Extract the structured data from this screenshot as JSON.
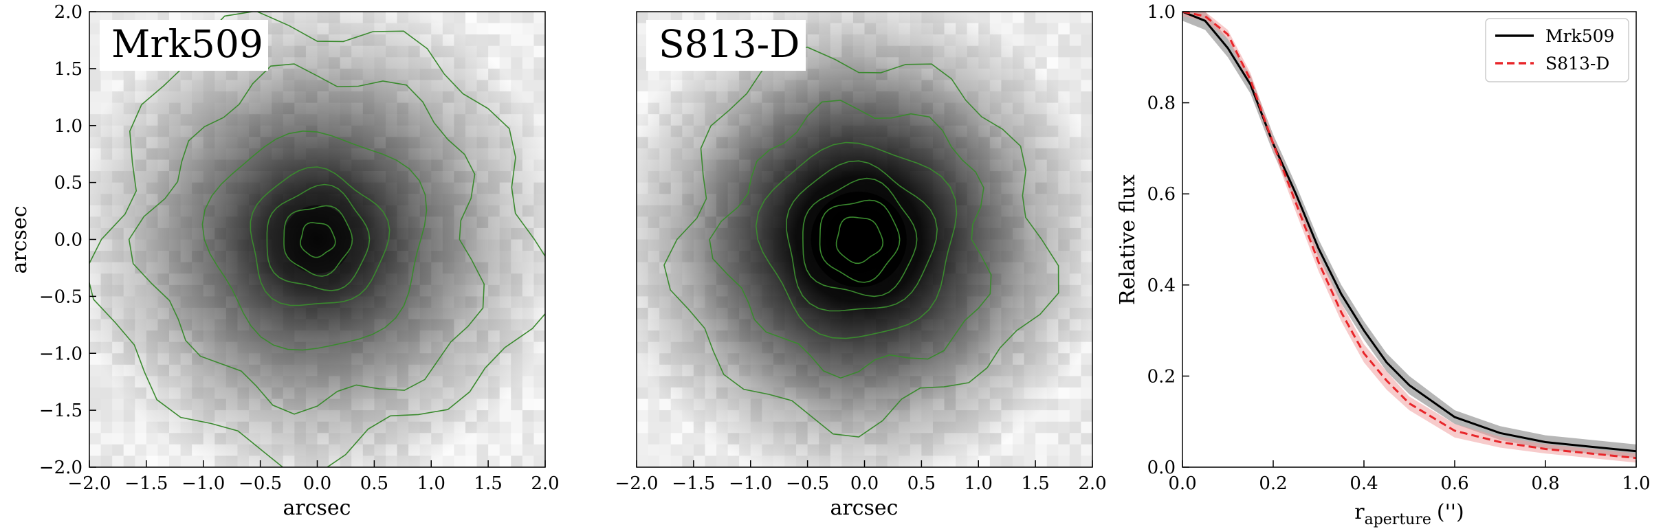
{
  "chart_data": [
    {
      "type": "heatmap",
      "panel_label": "Mrk509",
      "xlabel": "arcsec",
      "ylabel": "arcsec",
      "xlim": [
        -2.0,
        2.0
      ],
      "ylim": [
        -2.0,
        2.0
      ],
      "xticks": [
        "−2.0",
        "−1.5",
        "−1.0",
        "−0.5",
        "0.0",
        "0.5",
        "1.0",
        "1.5",
        "2.0"
      ],
      "yticks": [
        "−2.0",
        "−1.5",
        "−1.0",
        "−0.5",
        "0.0",
        "0.5",
        "1.0",
        "1.5",
        "2.0"
      ],
      "colormap": "gray_r",
      "contour_color": "#3a8a2e",
      "source_center": [
        0.0,
        0.0
      ],
      "contour_radii": [
        0.15,
        0.3,
        0.45,
        0.6,
        0.95,
        1.45,
        1.9
      ]
    },
    {
      "type": "heatmap",
      "panel_label": "S813-D",
      "xlabel": "arcsec",
      "ylabel": "",
      "xlim": [
        -2.0,
        2.0
      ],
      "ylim": [
        -2.0,
        2.0
      ],
      "xticks": [
        "−2.0",
        "−1.5",
        "−1.0",
        "−0.5",
        "0.0",
        "0.5",
        "1.0",
        "1.5",
        "2.0"
      ],
      "yticks": [],
      "colormap": "gray_r",
      "contour_color": "#3a8a2e",
      "source_center": [
        -0.05,
        0.0
      ],
      "contour_radii": [
        0.2,
        0.35,
        0.5,
        0.65,
        0.85,
        1.15,
        1.6
      ]
    },
    {
      "type": "line",
      "xlabel": "r",
      "xlabel_subscript": "aperture",
      "xlabel_unit": "('')",
      "ylabel": "Relative flux",
      "xlim": [
        0.0,
        1.0
      ],
      "ylim": [
        0.0,
        1.0
      ],
      "xticks": [
        "0.0",
        "0.2",
        "0.4",
        "0.6",
        "0.8",
        "1.0"
      ],
      "yticks": [
        "0.0",
        "0.2",
        "0.4",
        "0.6",
        "0.8",
        "1.0"
      ],
      "legend_position": "top-right",
      "series": [
        {
          "name": "Mrk509",
          "color": "#000000",
          "style": "solid",
          "band_color": "#7a7a7a",
          "x": [
            0.0,
            0.05,
            0.1,
            0.15,
            0.2,
            0.25,
            0.3,
            0.35,
            0.4,
            0.45,
            0.5,
            0.6,
            0.7,
            0.8,
            0.9,
            1.0
          ],
          "y": [
            1.0,
            0.98,
            0.92,
            0.84,
            0.71,
            0.6,
            0.48,
            0.38,
            0.3,
            0.23,
            0.18,
            0.11,
            0.075,
            0.055,
            0.045,
            0.035
          ],
          "band": [
            0.02,
            0.02,
            0.02,
            0.02,
            0.02,
            0.02,
            0.02,
            0.02,
            0.02,
            0.02,
            0.02,
            0.015,
            0.015,
            0.015,
            0.015,
            0.015
          ]
        },
        {
          "name": "S813-D",
          "color": "#e8262a",
          "style": "dashed",
          "band_color": "#f0a0a0",
          "x": [
            0.0,
            0.05,
            0.1,
            0.15,
            0.2,
            0.25,
            0.3,
            0.35,
            0.4,
            0.45,
            0.5,
            0.6,
            0.7,
            0.8,
            0.9,
            1.0
          ],
          "y": [
            1.0,
            0.99,
            0.95,
            0.85,
            0.71,
            0.58,
            0.45,
            0.34,
            0.25,
            0.19,
            0.14,
            0.08,
            0.055,
            0.04,
            0.03,
            0.02
          ],
          "band": [
            0.01,
            0.01,
            0.01,
            0.015,
            0.015,
            0.02,
            0.02,
            0.02,
            0.02,
            0.02,
            0.015,
            0.015,
            0.012,
            0.01,
            0.01,
            0.01
          ]
        }
      ]
    }
  ]
}
